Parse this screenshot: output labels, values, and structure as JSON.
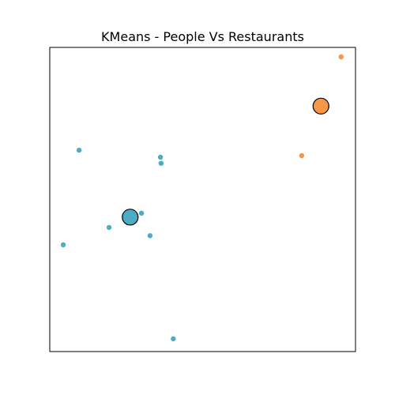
{
  "chart_data": {
    "type": "scatter",
    "title": "KMeans - People Vs Restaurants",
    "xlabel": "",
    "ylabel": "",
    "xlim": [
      0,
      100
    ],
    "ylim": [
      0,
      100
    ],
    "axes_ticks_visible": false,
    "grid": false,
    "legend": "none",
    "series": [
      {
        "color": "#4bacc6",
        "points": [
          {
            "x": 9.6,
            "y": 66.2
          },
          {
            "x": 36.2,
            "y": 63.9
          },
          {
            "x": 36.4,
            "y": 61.9
          },
          {
            "x": 30.0,
            "y": 45.5
          },
          {
            "x": 19.4,
            "y": 40.8
          },
          {
            "x": 32.8,
            "y": 38.1
          },
          {
            "x": 4.4,
            "y": 35.1
          },
          {
            "x": 40.4,
            "y": 4.2
          }
        ],
        "centroid": {
          "x": 26.3,
          "y": 44.2
        }
      },
      {
        "color": "#f79646",
        "points": [
          {
            "x": 95.3,
            "y": 96.9
          },
          {
            "x": 82.4,
            "y": 64.4
          }
        ],
        "centroid": {
          "x": 88.7,
          "y": 80.7
        }
      }
    ]
  }
}
